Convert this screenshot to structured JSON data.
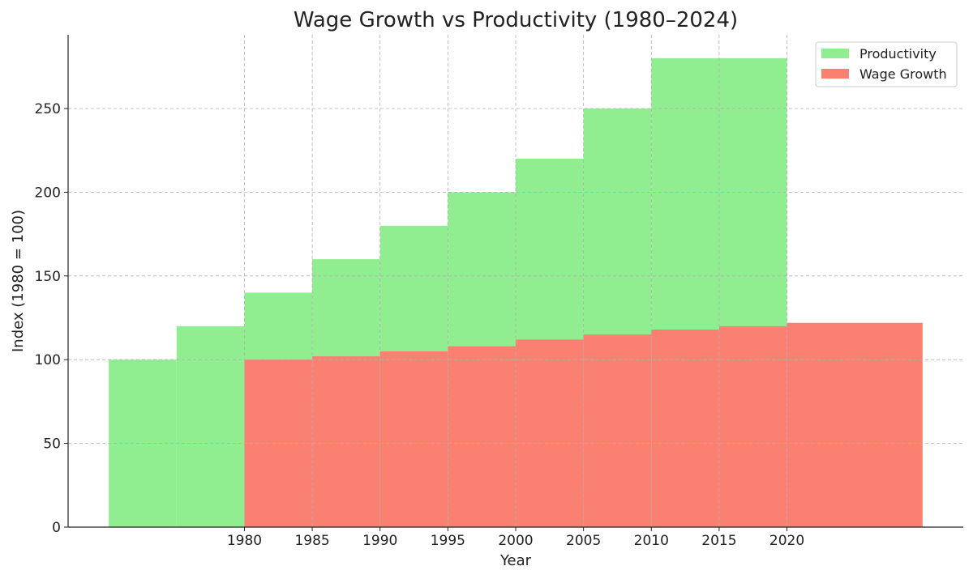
{
  "chart_data": {
    "type": "bar",
    "title": "Wage Growth vs Productivity (1980–2024)",
    "xlabel": "Year",
    "ylabel": "Index (1980 = 100)",
    "xlim": [
      1967,
      2033
    ],
    "ylim": [
      0,
      294
    ],
    "xticks": [
      1980,
      1985,
      1990,
      1995,
      2000,
      2005,
      2010,
      2015,
      2020
    ],
    "yticks": [
      0,
      50,
      100,
      150,
      200,
      250
    ],
    "grid": true,
    "legend_position": "top-right",
    "series": [
      {
        "name": "Productivity",
        "color": "#90ee90",
        "bars": [
          {
            "start": 1970,
            "end": 1975,
            "value": 100
          },
          {
            "start": 1975,
            "end": 1980,
            "value": 120
          },
          {
            "start": 1980,
            "end": 1985,
            "value": 140
          },
          {
            "start": 1985,
            "end": 1990,
            "value": 160
          },
          {
            "start": 1990,
            "end": 1995,
            "value": 180
          },
          {
            "start": 1995,
            "end": 2000,
            "value": 200
          },
          {
            "start": 2000,
            "end": 2005,
            "value": 220
          },
          {
            "start": 2005,
            "end": 2010,
            "value": 250
          },
          {
            "start": 2010,
            "end": 2020,
            "value": 280
          }
        ]
      },
      {
        "name": "Wage Growth",
        "color": "#fa8072",
        "bars": [
          {
            "start": 1980,
            "end": 1985,
            "value": 100
          },
          {
            "start": 1985,
            "end": 1990,
            "value": 102
          },
          {
            "start": 1990,
            "end": 1995,
            "value": 105
          },
          {
            "start": 1995,
            "end": 2000,
            "value": 108
          },
          {
            "start": 2000,
            "end": 2005,
            "value": 112
          },
          {
            "start": 2005,
            "end": 2010,
            "value": 115
          },
          {
            "start": 2010,
            "end": 2015,
            "value": 118
          },
          {
            "start": 2015,
            "end": 2020,
            "value": 120
          },
          {
            "start": 2020,
            "end": 2030,
            "value": 122
          }
        ]
      }
    ]
  }
}
